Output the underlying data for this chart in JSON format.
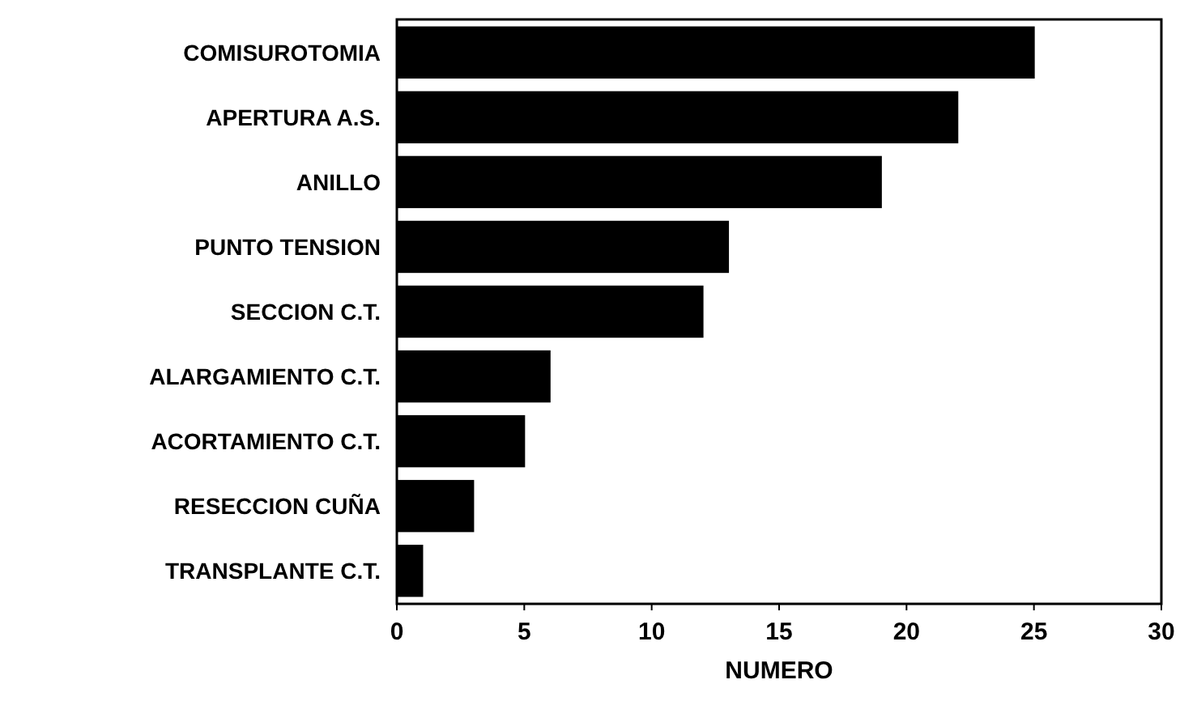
{
  "chart_data": {
    "type": "bar",
    "orientation": "horizontal",
    "xlabel": "NUMERO",
    "categories": [
      "COMISUROTOMIA",
      "APERTURA A.S.",
      "ANILLO",
      "PUNTO TENSION",
      "SECCION C.T.",
      "ALARGAMIENTO C.T.",
      "ACORTAMIENTO C.T.",
      "RESECCION CUÑA",
      "TRANSPLANTE C.T."
    ],
    "values": [
      25,
      22,
      19,
      13,
      12,
      6,
      5,
      3,
      1
    ],
    "color": "#000000",
    "xlim": [
      0,
      30
    ],
    "xticks": [
      0,
      5,
      10,
      15,
      20,
      25,
      30
    ],
    "grid": false
  }
}
